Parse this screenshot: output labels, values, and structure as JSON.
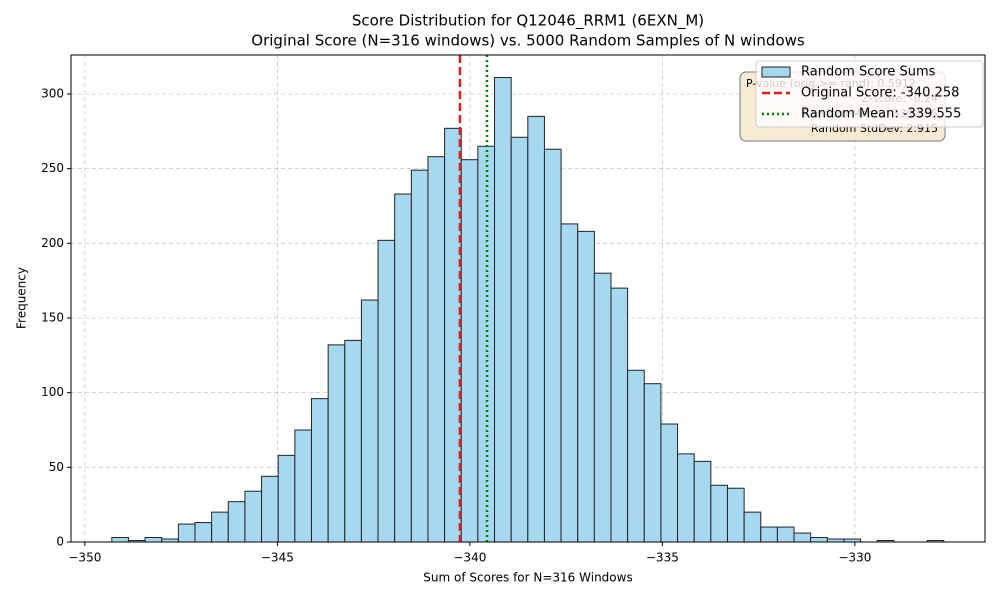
{
  "chart_data": {
    "type": "histogram",
    "title": "Score Distribution for Q12046_RRM1 (6EXN_M)",
    "subtitle": "Original Score (N=316 windows) vs. 5000 Random Samples of N windows",
    "xlabel": "Sum of Scores for N=316 Windows",
    "ylabel": "Frequency",
    "bins": [
      -349.3,
      -348.868,
      -348.436,
      -348.003,
      -347.571,
      -347.139,
      -346.707,
      -346.275,
      -345.842,
      -345.41,
      -344.978,
      -344.546,
      -344.114,
      -343.681,
      -343.249,
      -342.817,
      -342.385,
      -341.953,
      -341.52,
      -341.088,
      -340.656,
      -340.224,
      -339.792,
      -339.359,
      -338.927,
      -338.495,
      -338.063,
      -337.631,
      -337.198,
      -336.766,
      -336.334,
      -335.902,
      -335.47,
      -335.037,
      -334.605,
      -334.173,
      -333.741,
      -333.309,
      -332.876,
      -332.444,
      -332.012,
      -331.58,
      -331.148,
      -330.715,
      -330.283,
      -329.851,
      -329.419,
      -328.987,
      -328.554,
      -328.122,
      -327.69
    ],
    "series": [
      {
        "name": "Random Score Sums",
        "color": "#a6d9ef",
        "values": [
          3,
          1,
          3,
          2,
          12,
          13,
          20,
          27,
          34,
          44,
          58,
          75,
          96,
          132,
          135,
          162,
          202,
          233,
          249,
          258,
          277,
          256,
          265,
          311,
          271,
          285,
          263,
          213,
          208,
          180,
          170,
          115,
          106,
          79,
          59,
          54,
          38,
          36,
          20,
          10,
          10,
          6,
          3,
          2,
          2,
          0,
          1,
          0,
          0,
          1
        ]
      }
    ],
    "vlines": [
      {
        "name": "Original Score: -340.258",
        "value": -340.258,
        "color": "#e31a1c",
        "style": "dashed"
      },
      {
        "name": "Random Mean: -339.555",
        "value": -339.555,
        "color": "#008000",
        "style": "dotted"
      }
    ],
    "annotation": [
      "P-value (orig >= rand): 0.5912",
      "Z-score: -0.24",
      "Random Mean: -339.555",
      "Random StdDev: 2.915"
    ],
    "xlim": [
      -350.36,
      -326.62
    ],
    "ylim": [
      0,
      326.1
    ],
    "xticks": [
      {
        "value": -350,
        "label": "−350"
      },
      {
        "value": -345,
        "label": "−345"
      },
      {
        "value": -340,
        "label": "−340"
      },
      {
        "value": -335,
        "label": "−335"
      },
      {
        "value": -330,
        "label": "−330"
      }
    ],
    "yticks": [
      0,
      50,
      100,
      150,
      200,
      250,
      300
    ],
    "grid": true,
    "legend": "upper right"
  }
}
